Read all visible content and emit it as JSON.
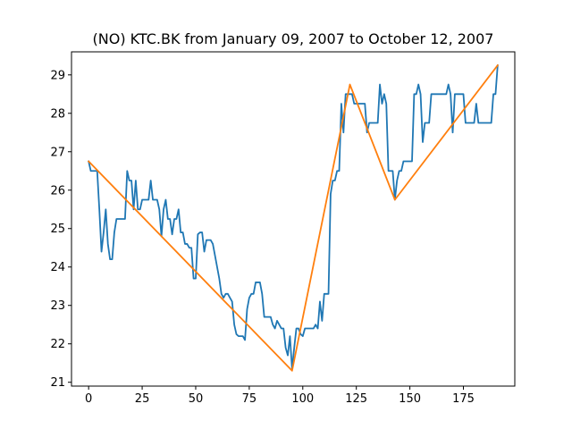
{
  "chart_data": {
    "type": "line",
    "title": "(NO) KTC.BK from January 09, 2007 to October 12, 2007",
    "xlabel": "",
    "ylabel": "",
    "xlim": [
      -8,
      199
    ],
    "ylim": [
      20.9,
      29.6
    ],
    "xticks": [
      0,
      25,
      50,
      75,
      100,
      125,
      150,
      175
    ],
    "yticks": [
      21,
      22,
      23,
      24,
      25,
      26,
      27,
      28,
      29
    ],
    "grid": false,
    "legend": "none",
    "series": [
      {
        "color": "#1f77b4",
        "points": [
          [
            0,
            26.75
          ],
          [
            1,
            26.5
          ],
          [
            2,
            26.5
          ],
          [
            3,
            26.5
          ],
          [
            4,
            26.5
          ],
          [
            5,
            25.5
          ],
          [
            6,
            24.4
          ],
          [
            7,
            24.9
          ],
          [
            8,
            25.5
          ],
          [
            9,
            24.6
          ],
          [
            10,
            24.2
          ],
          [
            11,
            24.2
          ],
          [
            12,
            24.9
          ],
          [
            13,
            25.25
          ],
          [
            14,
            25.25
          ],
          [
            15,
            25.25
          ],
          [
            16,
            25.25
          ],
          [
            17,
            25.25
          ],
          [
            18,
            26.5
          ],
          [
            19,
            26.25
          ],
          [
            20,
            26.25
          ],
          [
            21,
            25.5
          ],
          [
            22,
            26.25
          ],
          [
            23,
            25.5
          ],
          [
            24,
            25.5
          ],
          [
            25,
            25.75
          ],
          [
            26,
            25.75
          ],
          [
            27,
            25.75
          ],
          [
            28,
            25.75
          ],
          [
            29,
            26.25
          ],
          [
            30,
            25.75
          ],
          [
            31,
            25.75
          ],
          [
            32,
            25.75
          ],
          [
            33,
            25.5
          ],
          [
            34,
            24.8
          ],
          [
            35,
            25.5
          ],
          [
            36,
            25.75
          ],
          [
            37,
            25.25
          ],
          [
            38,
            25.25
          ],
          [
            39,
            24.85
          ],
          [
            40,
            25.25
          ],
          [
            41,
            25.25
          ],
          [
            42,
            25.5
          ],
          [
            43,
            24.9
          ],
          [
            44,
            24.9
          ],
          [
            45,
            24.6
          ],
          [
            46,
            24.6
          ],
          [
            47,
            24.5
          ],
          [
            48,
            24.5
          ],
          [
            49,
            23.7
          ],
          [
            50,
            23.7
          ],
          [
            51,
            24.85
          ],
          [
            52,
            24.9
          ],
          [
            53,
            24.9
          ],
          [
            54,
            24.4
          ],
          [
            55,
            24.7
          ],
          [
            56,
            24.7
          ],
          [
            57,
            24.7
          ],
          [
            58,
            24.6
          ],
          [
            59,
            24.3
          ],
          [
            60,
            24.0
          ],
          [
            61,
            23.7
          ],
          [
            62,
            23.3
          ],
          [
            63,
            23.2
          ],
          [
            64,
            23.3
          ],
          [
            65,
            23.3
          ],
          [
            66,
            23.2
          ],
          [
            67,
            23.1
          ],
          [
            68,
            22.5
          ],
          [
            69,
            22.25
          ],
          [
            70,
            22.2
          ],
          [
            71,
            22.2
          ],
          [
            72,
            22.2
          ],
          [
            73,
            22.1
          ],
          [
            74,
            22.9
          ],
          [
            75,
            23.2
          ],
          [
            76,
            23.3
          ],
          [
            77,
            23.3
          ],
          [
            78,
            23.6
          ],
          [
            79,
            23.6
          ],
          [
            80,
            23.6
          ],
          [
            81,
            23.3
          ],
          [
            82,
            22.7
          ],
          [
            83,
            22.7
          ],
          [
            84,
            22.7
          ],
          [
            85,
            22.7
          ],
          [
            86,
            22.5
          ],
          [
            87,
            22.4
          ],
          [
            88,
            22.6
          ],
          [
            89,
            22.5
          ],
          [
            90,
            22.4
          ],
          [
            91,
            22.4
          ],
          [
            92,
            21.9
          ],
          [
            93,
            21.7
          ],
          [
            94,
            22.2
          ],
          [
            95,
            21.35
          ],
          [
            96,
            21.9
          ],
          [
            97,
            22.4
          ],
          [
            98,
            22.4
          ],
          [
            99,
            22.25
          ],
          [
            100,
            22.2
          ],
          [
            101,
            22.4
          ],
          [
            102,
            22.4
          ],
          [
            103,
            22.4
          ],
          [
            104,
            22.4
          ],
          [
            105,
            22.4
          ],
          [
            106,
            22.5
          ],
          [
            107,
            22.4
          ],
          [
            108,
            23.1
          ],
          [
            109,
            22.6
          ],
          [
            110,
            23.3
          ],
          [
            111,
            23.3
          ],
          [
            112,
            23.3
          ],
          [
            113,
            25.9
          ],
          [
            114,
            26.25
          ],
          [
            115,
            26.25
          ],
          [
            116,
            26.5
          ],
          [
            117,
            26.5
          ],
          [
            118,
            28.25
          ],
          [
            119,
            27.5
          ],
          [
            120,
            28.5
          ],
          [
            121,
            28.5
          ],
          [
            122,
            28.5
          ],
          [
            123,
            28.5
          ],
          [
            124,
            28.25
          ],
          [
            125,
            28.25
          ],
          [
            126,
            28.25
          ],
          [
            127,
            28.25
          ],
          [
            128,
            28.25
          ],
          [
            129,
            28.25
          ],
          [
            130,
            27.5
          ],
          [
            131,
            27.75
          ],
          [
            132,
            27.75
          ],
          [
            133,
            27.75
          ],
          [
            134,
            27.75
          ],
          [
            135,
            27.75
          ],
          [
            136,
            28.75
          ],
          [
            137,
            28.25
          ],
          [
            138,
            28.5
          ],
          [
            139,
            28.25
          ],
          [
            140,
            26.5
          ],
          [
            141,
            26.5
          ],
          [
            142,
            26.5
          ],
          [
            143,
            25.75
          ],
          [
            144,
            26.25
          ],
          [
            145,
            26.5
          ],
          [
            146,
            26.5
          ],
          [
            147,
            26.75
          ],
          [
            148,
            26.75
          ],
          [
            149,
            26.75
          ],
          [
            150,
            26.75
          ],
          [
            151,
            26.75
          ],
          [
            152,
            28.5
          ],
          [
            153,
            28.5
          ],
          [
            154,
            28.75
          ],
          [
            155,
            28.5
          ],
          [
            156,
            27.25
          ],
          [
            157,
            27.75
          ],
          [
            158,
            27.75
          ],
          [
            159,
            27.75
          ],
          [
            160,
            28.5
          ],
          [
            161,
            28.5
          ],
          [
            162,
            28.5
          ],
          [
            163,
            28.5
          ],
          [
            164,
            28.5
          ],
          [
            165,
            28.5
          ],
          [
            166,
            28.5
          ],
          [
            167,
            28.5
          ],
          [
            168,
            28.75
          ],
          [
            169,
            28.5
          ],
          [
            170,
            27.5
          ],
          [
            171,
            28.5
          ],
          [
            172,
            28.5
          ],
          [
            173,
            28.5
          ],
          [
            174,
            28.5
          ],
          [
            175,
            28.5
          ],
          [
            176,
            27.75
          ],
          [
            177,
            27.75
          ],
          [
            178,
            27.75
          ],
          [
            179,
            27.75
          ],
          [
            180,
            27.75
          ],
          [
            181,
            28.25
          ],
          [
            182,
            27.75
          ],
          [
            183,
            27.75
          ],
          [
            184,
            27.75
          ],
          [
            185,
            27.75
          ],
          [
            186,
            27.75
          ],
          [
            187,
            27.75
          ],
          [
            188,
            27.75
          ],
          [
            189,
            28.5
          ],
          [
            190,
            28.5
          ],
          [
            191,
            29.25
          ]
        ]
      },
      {
        "color": "#ff7f0e",
        "points": [
          [
            0,
            26.75
          ],
          [
            95,
            21.3
          ],
          [
            122,
            28.75
          ],
          [
            143,
            25.75
          ],
          [
            191,
            29.25
          ]
        ]
      }
    ]
  }
}
